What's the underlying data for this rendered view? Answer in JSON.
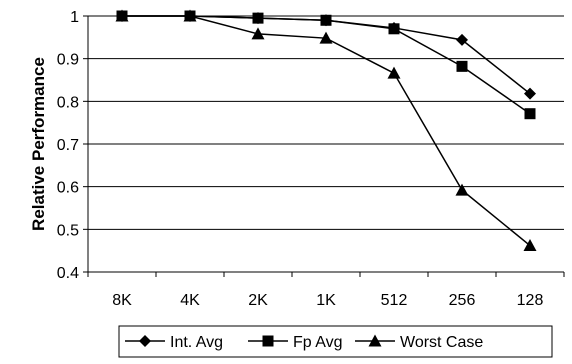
{
  "chart_data": {
    "type": "line",
    "ylabel": "Relative Performance",
    "xlabel": "",
    "categories": [
      "8K",
      "4K",
      "2K",
      "1K",
      "512",
      "256",
      "128"
    ],
    "ylim": [
      0.4,
      1
    ],
    "yticks": [
      0.4,
      0.5,
      0.6,
      0.7,
      0.8,
      0.9,
      1
    ],
    "ytick_labels": [
      "0.4",
      "0.5",
      "0.6",
      "0.7",
      "0.8",
      "0.9",
      "1"
    ],
    "grid": "horizontal",
    "legend": "bottom",
    "series": [
      {
        "name": "Int. Avg",
        "marker": "diamond",
        "color": "#000000",
        "values": [
          1.0,
          1.0,
          0.995,
          0.99,
          0.972,
          0.944,
          0.818
        ]
      },
      {
        "name": "Fp Avg",
        "marker": "square",
        "color": "#000000",
        "values": [
          1.0,
          1.0,
          0.995,
          0.99,
          0.97,
          0.882,
          0.771
        ]
      },
      {
        "name": "Worst Case",
        "marker": "triangle",
        "color": "#000000",
        "values": [
          1.0,
          1.0,
          0.958,
          0.948,
          0.866,
          0.592,
          0.462
        ]
      }
    ]
  }
}
